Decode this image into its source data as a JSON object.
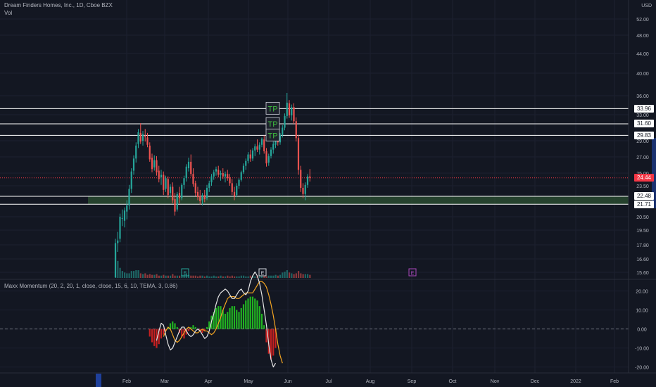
{
  "legend": {
    "main": "Dream Finders Homes, Inc., 1D, Cboe BZX",
    "volume": "Vol",
    "indicator": "Maxx Momentum (20, 2, 20, 1, close, close, 15, 6, 10, TEMA, 3, 0.86)"
  },
  "currency": "USD",
  "price_axis": {
    "ticks": [
      "52.00",
      "48.00",
      "44.00",
      "40.00",
      "36.00",
      "33.00",
      "29.00",
      "27.00",
      "25.00",
      "23.50",
      "20.50",
      "19.50",
      "17.80",
      "16.60",
      "15.60"
    ]
  },
  "indicator_axis": {
    "ticks": [
      "20.00",
      "10.00",
      "0.00",
      "-10.00",
      "-20.00"
    ]
  },
  "time_axis": {
    "labels": [
      "Feb",
      "Mar",
      "Apr",
      "May",
      "Jun",
      "Jul",
      "Aug",
      "Sep",
      "Oct",
      "Nov",
      "Dec",
      "2022",
      "Feb"
    ]
  },
  "levels": [
    {
      "value": "33.96",
      "style": "white"
    },
    {
      "value": "31.60",
      "style": "white"
    },
    {
      "value": "29.83",
      "style": "white"
    },
    {
      "value": "22.48",
      "style": "white"
    },
    {
      "value": "21.71",
      "style": "white"
    }
  ],
  "last_price": {
    "value": "24.44",
    "color": "#f23645"
  },
  "markers": [
    "TP",
    "TP",
    "TP"
  ],
  "earnings_markers": [
    "E",
    "E",
    "E"
  ],
  "colors": {
    "background": "#131722",
    "up": "#26a69a",
    "down": "#ef5350",
    "zone": "#2e5233",
    "hist_up": "#21b421",
    "hist_down": "#c82020",
    "line_fast": "#e6e6e6",
    "line_slow": "#f5a623",
    "tp_text": "#3fbf3f"
  },
  "chart_data": {
    "type": "candlestick",
    "x_unit": "trading day",
    "dates_start": "2021-01-26",
    "ohlc": [
      [
        13.5,
        18.5,
        13.3,
        18.0
      ],
      [
        18.0,
        19.3,
        17.2,
        18.3
      ],
      [
        18.5,
        20.8,
        18.1,
        20.5
      ],
      [
        20.4,
        21.2,
        19.8,
        20.4
      ],
      [
        20.2,
        21.4,
        19.7,
        21.1
      ],
      [
        21.0,
        22.1,
        20.3,
        21.6
      ],
      [
        21.6,
        23.6,
        21.2,
        23.2
      ],
      [
        23.2,
        25.6,
        22.8,
        25.2
      ],
      [
        25.3,
        27.2,
        24.8,
        26.8
      ],
      [
        26.8,
        28.8,
        26.3,
        28.4
      ],
      [
        28.6,
        30.8,
        28.1,
        30.3
      ],
      [
        30.2,
        31.7,
        28.6,
        28.9
      ],
      [
        29.0,
        30.5,
        28.4,
        30.0
      ],
      [
        29.8,
        30.8,
        28.9,
        29.6
      ],
      [
        29.5,
        30.2,
        28.2,
        28.5
      ],
      [
        28.4,
        28.8,
        26.4,
        26.7
      ],
      [
        26.9,
        27.4,
        25.1,
        25.5
      ],
      [
        25.7,
        27.2,
        25.3,
        26.6
      ],
      [
        26.6,
        27.1,
        24.7,
        25.1
      ],
      [
        25.3,
        25.9,
        23.9,
        24.3
      ],
      [
        24.5,
        25.4,
        23.6,
        24.8
      ],
      [
        24.8,
        25.2,
        22.6,
        23.1
      ],
      [
        23.2,
        24.7,
        22.9,
        24.4
      ],
      [
        24.3,
        24.6,
        22.3,
        22.6
      ],
      [
        22.8,
        23.7,
        22.4,
        23.4
      ],
      [
        23.4,
        23.9,
        21.8,
        22.1
      ],
      [
        22.2,
        22.8,
        20.6,
        21.0
      ],
      [
        21.2,
        22.9,
        21.0,
        22.7
      ],
      [
        22.8,
        23.4,
        21.8,
        22.3
      ],
      [
        22.3,
        23.8,
        22.1,
        23.6
      ],
      [
        23.6,
        24.7,
        23.2,
        24.4
      ],
      [
        24.4,
        26.1,
        24.0,
        25.8
      ],
      [
        25.6,
        26.9,
        25.2,
        26.4
      ],
      [
        26.4,
        27.3,
        24.6,
        24.9
      ],
      [
        24.9,
        25.6,
        23.4,
        23.7
      ],
      [
        23.8,
        24.1,
        22.5,
        22.8
      ],
      [
        22.9,
        23.4,
        22.1,
        22.4
      ],
      [
        22.5,
        23.1,
        21.7,
        22.0
      ],
      [
        22.1,
        22.8,
        21.6,
        22.6
      ],
      [
        22.6,
        23.1,
        21.9,
        22.2
      ],
      [
        22.3,
        23.6,
        22.1,
        23.3
      ],
      [
        23.3,
        24.1,
        22.9,
        23.8
      ],
      [
        23.9,
        24.9,
        23.5,
        24.6
      ],
      [
        24.6,
        25.4,
        24.2,
        25.1
      ],
      [
        25.2,
        25.8,
        24.7,
        25.5
      ],
      [
        25.4,
        25.9,
        24.5,
        24.8
      ],
      [
        24.8,
        25.3,
        24.1,
        25.0
      ],
      [
        25.0,
        25.6,
        24.3,
        24.6
      ],
      [
        24.6,
        25.2,
        23.9,
        24.9
      ],
      [
        24.9,
        25.4,
        24.1,
        24.4
      ],
      [
        24.5,
        24.9,
        23.5,
        23.8
      ],
      [
        23.8,
        24.3,
        22.6,
        22.9
      ],
      [
        22.9,
        23.4,
        22.1,
        22.5
      ],
      [
        22.6,
        23.8,
        22.4,
        23.5
      ],
      [
        23.5,
        24.4,
        23.2,
        24.2
      ],
      [
        24.2,
        25.3,
        24.0,
        25.1
      ],
      [
        25.1,
        26.2,
        24.9,
        25.9
      ],
      [
        25.9,
        26.8,
        25.4,
        26.5
      ],
      [
        26.5,
        27.6,
        26.2,
        27.3
      ],
      [
        27.3,
        27.9,
        26.4,
        26.8
      ],
      [
        26.8,
        28.1,
        26.5,
        27.8
      ],
      [
        27.8,
        28.6,
        27.1,
        28.3
      ],
      [
        28.3,
        29.2,
        27.6,
        27.9
      ],
      [
        27.9,
        28.8,
        27.3,
        28.5
      ],
      [
        28.5,
        29.5,
        28.2,
        29.3
      ],
      [
        29.2,
        29.8,
        27.4,
        27.7
      ],
      [
        27.7,
        28.1,
        25.8,
        26.2
      ],
      [
        26.3,
        27.4,
        25.9,
        27.1
      ],
      [
        27.1,
        28.2,
        26.8,
        27.9
      ],
      [
        27.9,
        28.9,
        27.4,
        28.6
      ],
      [
        28.5,
        29.4,
        28.1,
        29.0
      ],
      [
        29.0,
        29.8,
        28.4,
        28.8
      ],
      [
        28.8,
        30.2,
        28.5,
        29.9
      ],
      [
        29.9,
        31.4,
        29.5,
        31.0
      ],
      [
        31.0,
        33.2,
        30.6,
        32.8
      ],
      [
        32.8,
        36.5,
        32.4,
        34.9
      ],
      [
        34.8,
        35.3,
        32.5,
        32.9
      ],
      [
        32.9,
        34.6,
        32.1,
        34.2
      ],
      [
        34.2,
        34.8,
        31.6,
        32.0
      ],
      [
        32.0,
        32.6,
        28.9,
        29.4
      ],
      [
        29.4,
        29.9,
        24.8,
        25.4
      ],
      [
        25.4,
        25.9,
        22.9,
        23.3
      ],
      [
        23.3,
        23.8,
        22.3,
        22.7
      ],
      [
        22.7,
        23.9,
        22.1,
        23.6
      ],
      [
        23.6,
        24.9,
        23.3,
        24.6
      ],
      [
        24.6,
        25.5,
        24.0,
        24.44
      ]
    ],
    "volume_scale": [
      3.6,
      2.2,
      1.3,
      0.9,
      0.7,
      0.6,
      0.6,
      0.9,
      0.9,
      1.0,
      1.0,
      0.6,
      0.5,
      0.6,
      0.4,
      0.5,
      0.4,
      0.4,
      0.5,
      0.3,
      0.3,
      0.4,
      0.3,
      0.3,
      0.3,
      0.5,
      0.3,
      0.3,
      0.3,
      0.4,
      0.4,
      0.6,
      0.4,
      0.3,
      0.3,
      0.3,
      0.2,
      0.3,
      0.3,
      0.2,
      0.3,
      0.2,
      0.2,
      0.3,
      0.2,
      0.2,
      0.3,
      0.2,
      0.2,
      0.3,
      0.2,
      0.3,
      0.2,
      0.2,
      0.2,
      0.3,
      0.3,
      0.2,
      0.2,
      0.3,
      0.3,
      0.2,
      0.3,
      0.2,
      0.3,
      0.3,
      0.2,
      0.3,
      0.3,
      0.3,
      0.4,
      0.3,
      0.4,
      0.7,
      0.8,
      1.0,
      0.7,
      0.6,
      0.5,
      0.6,
      0.9,
      0.6,
      0.5,
      0.5,
      0.5,
      0.4
    ],
    "indicator": {
      "ylim": [
        -22,
        25
      ],
      "hist_start": 15,
      "hist": [
        -4,
        -7,
        -9,
        -10,
        -8,
        -5,
        -3,
        -1,
        1,
        3,
        4,
        3,
        1,
        -2,
        -4,
        -5,
        -3,
        -1,
        1,
        2,
        1,
        0,
        -1,
        -2,
        -1,
        1,
        4,
        7,
        9,
        11,
        12,
        12,
        10,
        8,
        9,
        11,
        12,
        12,
        10,
        9,
        11,
        13,
        15,
        16,
        17,
        17,
        16,
        15,
        12,
        8,
        2,
        -7,
        -13,
        -16,
        -14,
        -10
      ],
      "fast_start": 18,
      "fast": [
        -6,
        -1,
        3,
        2,
        -3,
        -8,
        -11,
        -10,
        -7,
        -4,
        -1,
        1,
        1,
        -1,
        -3,
        -4,
        -3,
        -1,
        0,
        -1,
        -3,
        -5,
        -4,
        -1,
        4,
        8,
        13,
        17,
        19,
        20,
        21,
        20,
        18,
        16,
        16,
        18,
        20,
        21,
        19,
        18,
        20,
        25,
        28,
        30,
        28,
        24,
        18,
        10,
        2,
        -8,
        -16,
        -20,
        -18
      ],
      "slow_start": 21,
      "slow": [
        -4,
        -1,
        1,
        0,
        -3,
        -6,
        -7,
        -6,
        -4,
        -2,
        0,
        1,
        0,
        -1,
        -2,
        -2,
        -1,
        0,
        -1,
        -1,
        -2,
        -3,
        -2,
        0,
        3,
        6,
        10,
        13,
        16,
        17,
        17,
        17,
        16,
        16,
        17,
        18,
        19,
        19,
        19,
        19,
        21,
        23,
        25,
        25,
        24,
        22,
        18,
        13,
        7,
        0,
        -8,
        -14,
        -18
      ]
    },
    "ylim": [
      13.5,
      54.5
    ]
  }
}
